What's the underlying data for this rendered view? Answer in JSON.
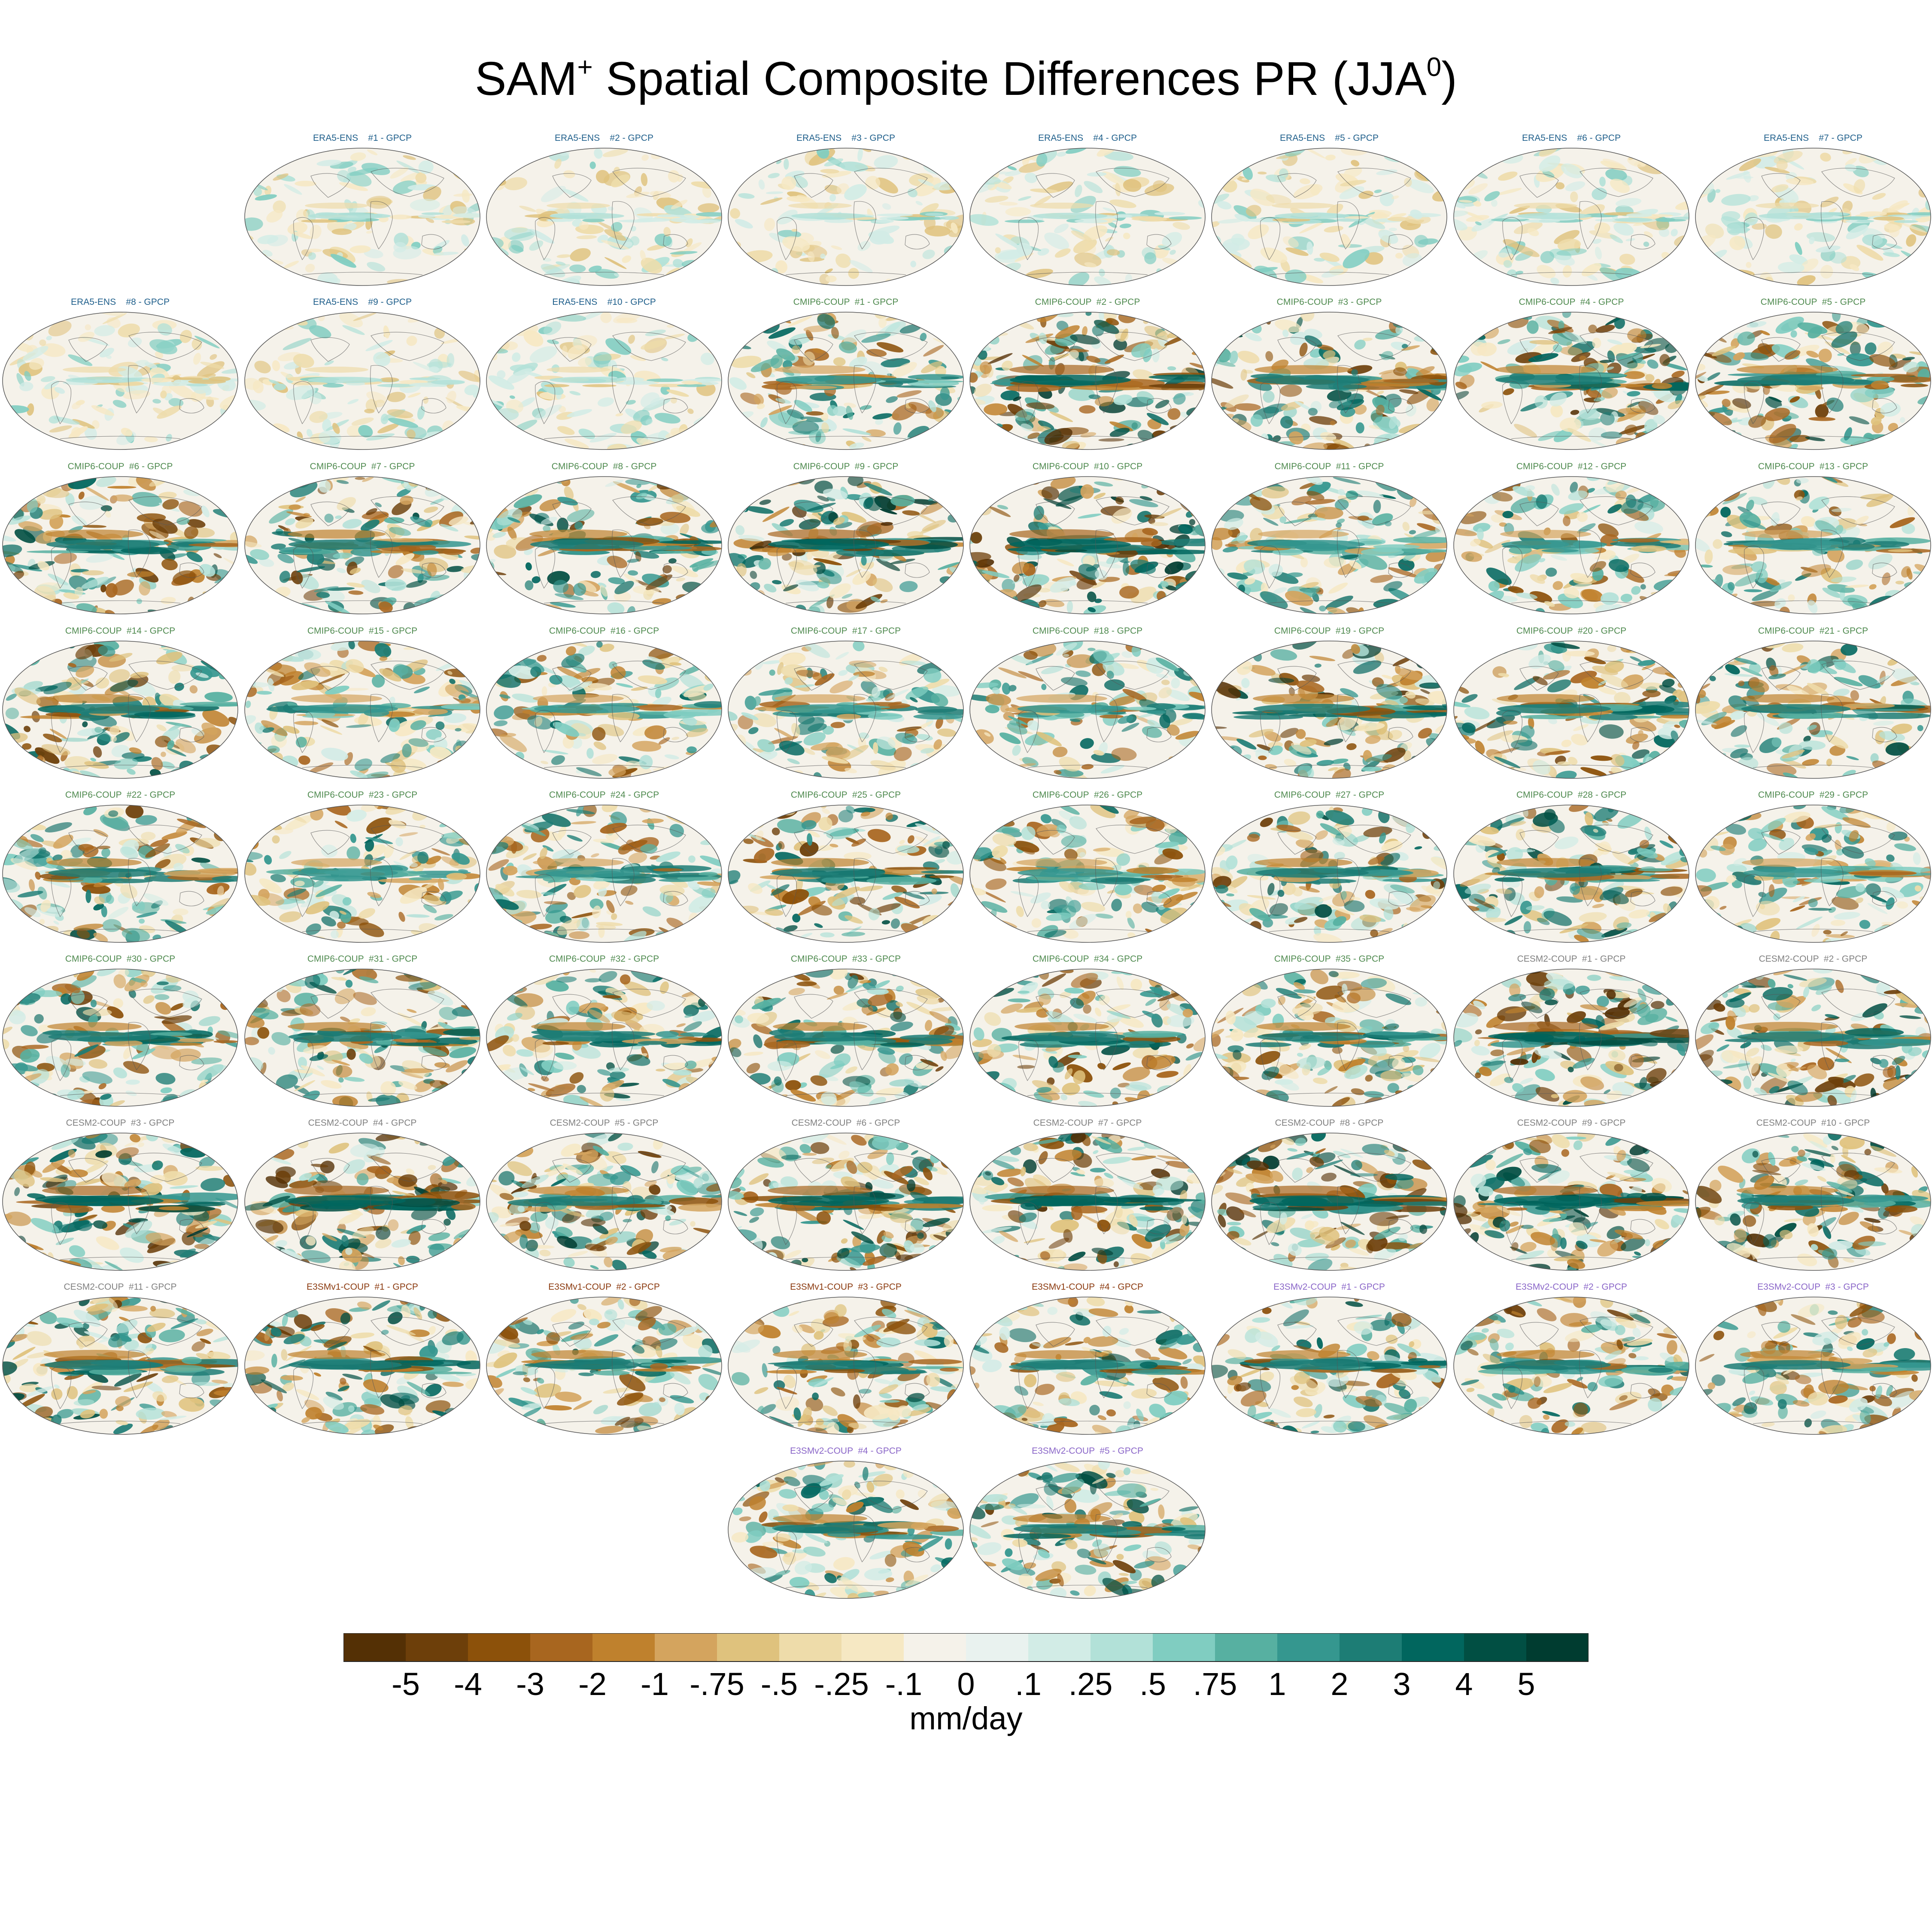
{
  "figure": {
    "title_main": "SAM",
    "title_sup": "+",
    "title_rest": " Spatial Composite Differences PR (JJA",
    "title_sup2": "0",
    "title_end": ")"
  },
  "chart_data": {
    "type": "heatmap",
    "projection": "Robinson global map panels",
    "panels": [
      {
        "label": "ERA5-ENS    #1 - GPCP",
        "group": "ERA5-ENS",
        "intensity": 0.3
      },
      {
        "label": "ERA5-ENS    #2 - GPCP",
        "group": "ERA5-ENS",
        "intensity": 0.3
      },
      {
        "label": "ERA5-ENS    #3 - GPCP",
        "group": "ERA5-ENS",
        "intensity": 0.3
      },
      {
        "label": "ERA5-ENS    #4 - GPCP",
        "group": "ERA5-ENS",
        "intensity": 0.3
      },
      {
        "label": "ERA5-ENS    #5 - GPCP",
        "group": "ERA5-ENS",
        "intensity": 0.3
      },
      {
        "label": "ERA5-ENS    #6 - GPCP",
        "group": "ERA5-ENS",
        "intensity": 0.3
      },
      {
        "label": "ERA5-ENS    #7 - GPCP",
        "group": "ERA5-ENS",
        "intensity": 0.3
      },
      {
        "label": "ERA5-ENS    #8 - GPCP",
        "group": "ERA5-ENS",
        "intensity": 0.3
      },
      {
        "label": "ERA5-ENS    #9 - GPCP",
        "group": "ERA5-ENS",
        "intensity": 0.3
      },
      {
        "label": "ERA5-ENS    #10 - GPCP",
        "group": "ERA5-ENS",
        "intensity": 0.3
      },
      {
        "label": "CMIP6-COUP  #1 - GPCP",
        "group": "CMIP6-COUP",
        "intensity": 0.7
      },
      {
        "label": "CMIP6-COUP  #2 - GPCP",
        "group": "CMIP6-COUP",
        "intensity": 0.9
      },
      {
        "label": "CMIP6-COUP  #3 - GPCP",
        "group": "CMIP6-COUP",
        "intensity": 0.8
      },
      {
        "label": "CMIP6-COUP  #4 - GPCP",
        "group": "CMIP6-COUP",
        "intensity": 0.85
      },
      {
        "label": "CMIP6-COUP  #5 - GPCP",
        "group": "CMIP6-COUP",
        "intensity": 0.85
      },
      {
        "label": "CMIP6-COUP  #6 - GPCP",
        "group": "CMIP6-COUP",
        "intensity": 0.8
      },
      {
        "label": "CMIP6-COUP  #7 - GPCP",
        "group": "CMIP6-COUP",
        "intensity": 0.8
      },
      {
        "label": "CMIP6-COUP  #8 - GPCP",
        "group": "CMIP6-COUP",
        "intensity": 0.8
      },
      {
        "label": "CMIP6-COUP  #9 - GPCP",
        "group": "CMIP6-COUP",
        "intensity": 0.9
      },
      {
        "label": "CMIP6-COUP  #10 - GPCP",
        "group": "CMIP6-COUP",
        "intensity": 0.9
      },
      {
        "label": "CMIP6-COUP  #11 - GPCP",
        "group": "CMIP6-COUP",
        "intensity": 0.7
      },
      {
        "label": "CMIP6-COUP  #12 - GPCP",
        "group": "CMIP6-COUP",
        "intensity": 0.7
      },
      {
        "label": "CMIP6-COUP  #13 - GPCP",
        "group": "CMIP6-COUP",
        "intensity": 0.7
      },
      {
        "label": "CMIP6-COUP  #14 - GPCP",
        "group": "CMIP6-COUP",
        "intensity": 0.8
      },
      {
        "label": "CMIP6-COUP  #15 - GPCP",
        "group": "CMIP6-COUP",
        "intensity": 0.7
      },
      {
        "label": "CMIP6-COUP  #16 - GPCP",
        "group": "CMIP6-COUP",
        "intensity": 0.7
      },
      {
        "label": "CMIP6-COUP  #17 - GPCP",
        "group": "CMIP6-COUP",
        "intensity": 0.7
      },
      {
        "label": "CMIP6-COUP  #18 - GPCP",
        "group": "CMIP6-COUP",
        "intensity": 0.7
      },
      {
        "label": "CMIP6-COUP  #19 - GPCP",
        "group": "CMIP6-COUP",
        "intensity": 0.85
      },
      {
        "label": "CMIP6-COUP  #20 - GPCP",
        "group": "CMIP6-COUP",
        "intensity": 0.8
      },
      {
        "label": "CMIP6-COUP  #21 - GPCP",
        "group": "CMIP6-COUP",
        "intensity": 0.75
      },
      {
        "label": "CMIP6-COUP  #22 - GPCP",
        "group": "CMIP6-COUP",
        "intensity": 0.75
      },
      {
        "label": "CMIP6-COUP  #23 - GPCP",
        "group": "CMIP6-COUP",
        "intensity": 0.7
      },
      {
        "label": "CMIP6-COUP  #24 - GPCP",
        "group": "CMIP6-COUP",
        "intensity": 0.7
      },
      {
        "label": "CMIP6-COUP  #25 - GPCP",
        "group": "CMIP6-COUP",
        "intensity": 0.8
      },
      {
        "label": "CMIP6-COUP  #26 - GPCP",
        "group": "CMIP6-COUP",
        "intensity": 0.7
      },
      {
        "label": "CMIP6-COUP  #27 - GPCP",
        "group": "CMIP6-COUP",
        "intensity": 0.8
      },
      {
        "label": "CMIP6-COUP  #28 - GPCP",
        "group": "CMIP6-COUP",
        "intensity": 0.8
      },
      {
        "label": "CMIP6-COUP  #29 - GPCP",
        "group": "CMIP6-COUP",
        "intensity": 0.7
      },
      {
        "label": "CMIP6-COUP  #30 - GPCP",
        "group": "CMIP6-COUP",
        "intensity": 0.75
      },
      {
        "label": "CMIP6-COUP  #31 - GPCP",
        "group": "CMIP6-COUP",
        "intensity": 0.8
      },
      {
        "label": "CMIP6-COUP  #32 - GPCP",
        "group": "CMIP6-COUP",
        "intensity": 0.75
      },
      {
        "label": "CMIP6-COUP  #33 - GPCP",
        "group": "CMIP6-COUP",
        "intensity": 0.75
      },
      {
        "label": "CMIP6-COUP  #34 - GPCP",
        "group": "CMIP6-COUP",
        "intensity": 0.75
      },
      {
        "label": "CMIP6-COUP  #35 - GPCP",
        "group": "CMIP6-COUP",
        "intensity": 0.75
      },
      {
        "label": "CESM2-COUP  #1 - GPCP",
        "group": "CESM2-COUP",
        "intensity": 0.9
      },
      {
        "label": "CESM2-COUP  #2 - GPCP",
        "group": "CESM2-COUP",
        "intensity": 0.85
      },
      {
        "label": "CESM2-COUP  #3 - GPCP",
        "group": "CESM2-COUP",
        "intensity": 0.9
      },
      {
        "label": "CESM2-COUP  #4 - GPCP",
        "group": "CESM2-COUP",
        "intensity": 0.9
      },
      {
        "label": "CESM2-COUP  #5 - GPCP",
        "group": "CESM2-COUP",
        "intensity": 0.85
      },
      {
        "label": "CESM2-COUP  #6 - GPCP",
        "group": "CESM2-COUP",
        "intensity": 0.9
      },
      {
        "label": "CESM2-COUP  #7 - GPCP",
        "group": "CESM2-COUP",
        "intensity": 0.9
      },
      {
        "label": "CESM2-COUP  #8 - GPCP",
        "group": "CESM2-COUP",
        "intensity": 0.95
      },
      {
        "label": "CESM2-COUP  #9 - GPCP",
        "group": "CESM2-COUP",
        "intensity": 0.9
      },
      {
        "label": "CESM2-COUP  #10 - GPCP",
        "group": "CESM2-COUP",
        "intensity": 0.85
      },
      {
        "label": "CESM2-COUP  #11 - GPCP",
        "group": "CESM2-COUP",
        "intensity": 0.85
      },
      {
        "label": "E3SMv1-COUP  #1 - GPCP",
        "group": "E3SMv1-COUP",
        "intensity": 0.8
      },
      {
        "label": "E3SMv1-COUP  #2 - GPCP",
        "group": "E3SMv1-COUP",
        "intensity": 0.75
      },
      {
        "label": "E3SMv1-COUP  #3 - GPCP",
        "group": "E3SMv1-COUP",
        "intensity": 0.75
      },
      {
        "label": "E3SMv1-COUP  #4 - GPCP",
        "group": "E3SMv1-COUP",
        "intensity": 0.75
      },
      {
        "label": "E3SMv2-COUP  #1 - GPCP",
        "group": "E3SMv2-COUP",
        "intensity": 0.75
      },
      {
        "label": "E3SMv2-COUP  #2 - GPCP",
        "group": "E3SMv2-COUP",
        "intensity": 0.8
      },
      {
        "label": "E3SMv2-COUP  #3 - GPCP",
        "group": "E3SMv2-COUP",
        "intensity": 0.75
      },
      {
        "label": "E3SMv2-COUP  #4 - GPCP",
        "group": "E3SMv2-COUP",
        "intensity": 0.75
      },
      {
        "label": "E3SMv2-COUP  #5 - GPCP",
        "group": "E3SMv2-COUP",
        "intensity": 0.8
      }
    ],
    "group_label_colors": {
      "ERA5-ENS": "#1f5f8b",
      "CMIP6-COUP": "#4f8a4f",
      "CESM2-COUP": "#808080",
      "E3SMv1-COUP": "#8b3a0f",
      "E3SMv2-COUP": "#8a66c8"
    },
    "colorbar": {
      "colors": [
        "#543005",
        "#6d3f0a",
        "#8c510a",
        "#a8661f",
        "#bf812d",
        "#d4a45e",
        "#dfc27d",
        "#eedcaa",
        "#f6e8c3",
        "#f5f2ea",
        "#e9f2ef",
        "#d2ece6",
        "#b2e1d8",
        "#80cdc1",
        "#57b0a1",
        "#35978f",
        "#1d7d75",
        "#01665e",
        "#014f43",
        "#003c30"
      ],
      "tick_labels": [
        "-5",
        "-4",
        "-3",
        "-2",
        "-1",
        "-.75",
        "-.5",
        "-.25",
        "-.1",
        "0",
        ".1",
        ".25",
        ".5",
        ".75",
        "1",
        "2",
        "3",
        "4",
        "5"
      ],
      "units": "mm/day"
    }
  }
}
